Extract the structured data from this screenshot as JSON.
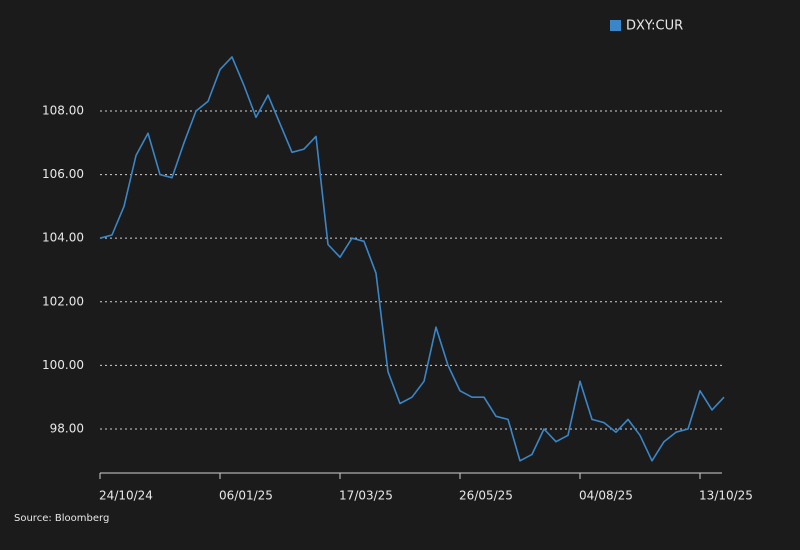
{
  "chart_data": {
    "type": "line",
    "source": "Source: Bloomberg",
    "categories": [
      "24/10/24",
      null,
      null,
      null,
      null,
      null,
      null,
      null,
      null,
      null,
      "06/01/25",
      null,
      null,
      null,
      null,
      null,
      null,
      null,
      null,
      null,
      "17/03/25",
      null,
      null,
      null,
      null,
      null,
      null,
      null,
      null,
      null,
      "26/05/25",
      null,
      null,
      null,
      null,
      null,
      null,
      null,
      null,
      null,
      "04/08/25",
      null,
      null,
      null,
      null,
      null,
      null,
      null,
      null,
      null,
      "13/10/25",
      null,
      null
    ],
    "series": [
      {
        "name": "DXY:CUR",
        "color": "#3a86c8",
        "values": [
          104.0,
          104.1,
          105.0,
          106.6,
          107.3,
          106.0,
          105.9,
          107.0,
          108.0,
          108.3,
          109.3,
          109.7,
          108.8,
          107.8,
          108.5,
          107.6,
          106.7,
          106.8,
          107.2,
          103.8,
          103.4,
          104.0,
          103.9,
          102.9,
          99.8,
          98.8,
          99.0,
          99.5,
          101.2,
          100.0,
          99.2,
          99.0,
          99.0,
          98.4,
          98.3,
          97.0,
          97.2,
          98.0,
          97.6,
          97.8,
          99.5,
          98.3,
          98.2,
          97.9,
          98.3,
          97.8,
          97.0,
          97.6,
          97.9,
          98.0,
          99.2,
          98.6,
          99.0
        ]
      }
    ],
    "ylim": [
      96.6,
      110.2
    ],
    "yticks": [
      {
        "value": 98,
        "label": "98.00"
      },
      {
        "value": 100,
        "label": "100.00"
      },
      {
        "value": 102,
        "label": "102.00"
      },
      {
        "value": 104,
        "label": "104.00"
      },
      {
        "value": 106,
        "label": "106.00"
      },
      {
        "value": 108,
        "label": "108.00"
      }
    ],
    "grid": true,
    "legend": "top-right"
  }
}
